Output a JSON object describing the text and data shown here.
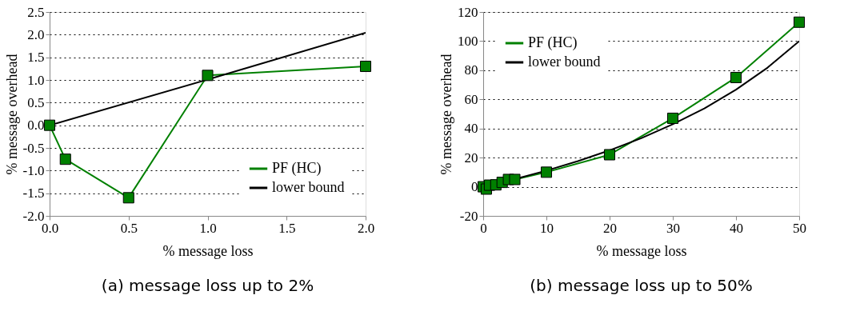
{
  "chart_data": [
    {
      "type": "line",
      "title": "(a) message loss up to 2%",
      "xlabel": "% message loss",
      "ylabel": "% message overhead",
      "xlim": [
        0,
        2.0
      ],
      "xticks": [
        {
          "value": 0,
          "label": "0.0"
        },
        0.5,
        {
          "value": 1,
          "label": "1.0"
        },
        1.5,
        {
          "value": 2,
          "label": "2.0"
        }
      ],
      "ylim": [
        -2.0,
        2.5
      ],
      "yticks": [
        {
          "value": -2,
          "label": "-2.0"
        },
        -1.5,
        {
          "value": -1,
          "label": "-1.0"
        },
        -0.5,
        {
          "value": 0,
          "label": "0.0"
        },
        0.5,
        {
          "value": 1,
          "label": "1.0"
        },
        1.5,
        {
          "value": 2,
          "label": "2.0"
        },
        2.5
      ],
      "grid": "y",
      "legend": "bottom right",
      "series": [
        {
          "name": "PF (HC)",
          "color": "#008000",
          "marker": "square",
          "x": [
            0,
            0.1,
            0.5,
            1.0,
            2.0
          ],
          "values": [
            0,
            -0.75,
            -1.6,
            1.1,
            1.3
          ]
        },
        {
          "name": "lower bound",
          "color": "#000000",
          "marker": "none",
          "x": [
            0,
            1.0,
            2.0
          ],
          "values": [
            0,
            1.01,
            2.04
          ]
        }
      ]
    },
    {
      "type": "line",
      "title": "(b) message loss up to 50%",
      "xlabel": "% message loss",
      "ylabel": "% message overhead",
      "xlim": [
        0,
        50
      ],
      "xticks": [
        0,
        10,
        20,
        30,
        40,
        50
      ],
      "ylim": [
        -20,
        120
      ],
      "yticks": [
        -20,
        0,
        20,
        40,
        60,
        80,
        100,
        120
      ],
      "grid": "y",
      "legend": "top left",
      "series": [
        {
          "name": "PF (HC)",
          "color": "#008000",
          "marker": "square",
          "x": [
            0,
            0.1,
            0.5,
            1,
            2,
            3,
            4,
            5,
            10,
            20,
            30,
            40,
            50
          ],
          "values": [
            0,
            null,
            -1.6,
            1.1,
            1.3,
            3,
            5,
            5,
            10,
            22,
            47,
            75,
            113
          ]
        },
        {
          "name": "lower bound",
          "color": "#000000",
          "marker": "none",
          "x": [
            0,
            5,
            10,
            15,
            20,
            25,
            30,
            35,
            40,
            45,
            50
          ],
          "values": [
            0,
            5.3,
            11.1,
            17.6,
            25,
            33.3,
            42.9,
            53.8,
            66.7,
            81.8,
            100
          ]
        }
      ]
    }
  ]
}
